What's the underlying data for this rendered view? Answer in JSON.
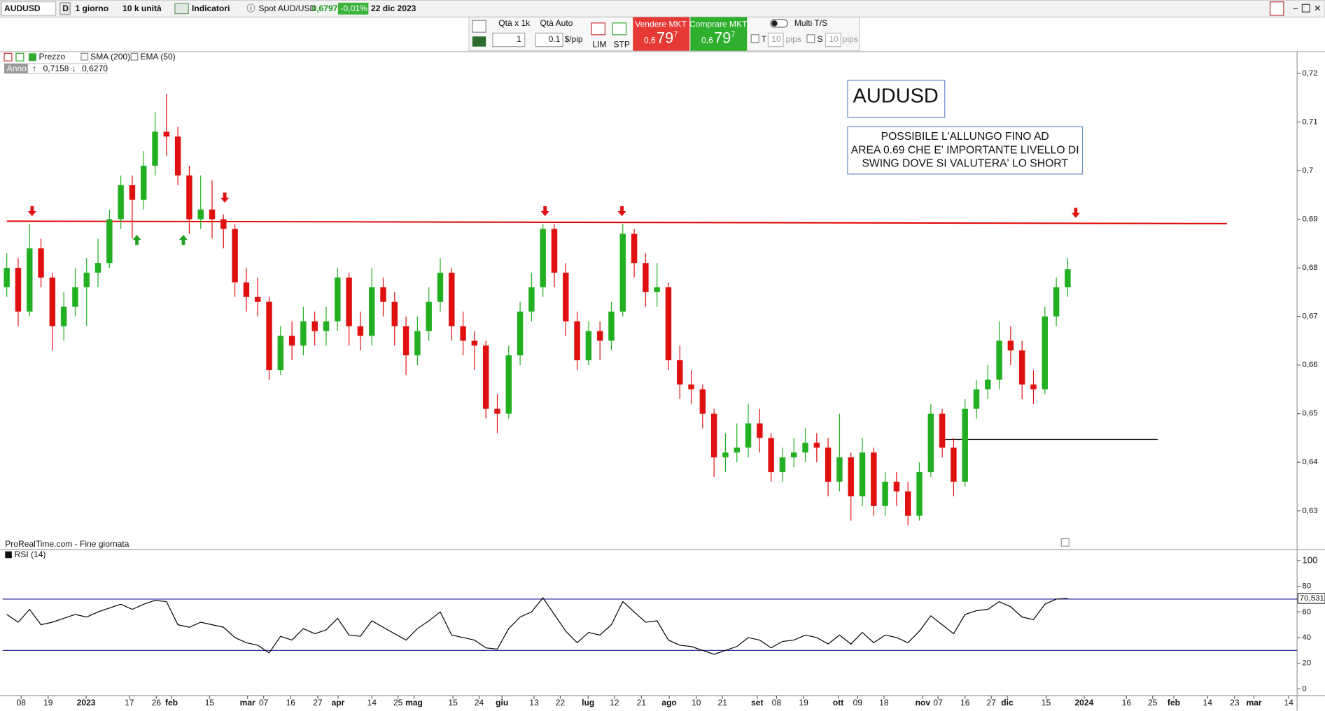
{
  "toolbar": {
    "symbol": "AUDUSD",
    "d": "D",
    "period": "1 giorno",
    "units": "10 k unità",
    "indicators": "Indicatori",
    "spot": "Spot AUD/USD",
    "spot_price": "0,6797",
    "spot_change": "-0,01%",
    "date": "22 dic 2023",
    "qty_label": "Qtà  x 1k",
    "qty_auto": "Qtà Auto",
    "qty": "1",
    "pip_value": "0.1",
    "pip_unit": "$/pip",
    "lim": "LIM",
    "stp": "STP",
    "sell": {
      "label": "Vendere MKT",
      "big": "0,6",
      "main": "79",
      "small": "7"
    },
    "buy": {
      "label": "Comprare MKT",
      "big": "0,6",
      "main": "79",
      "small": "7"
    },
    "multi": "Multi T/S",
    "t": "T",
    "t_pips": "10",
    "t_unit": "pips",
    "s": "S",
    "s_pips": "10",
    "s_unit": "pips"
  },
  "legend": {
    "price": "Prezzo",
    "sma": "SMA (200)",
    "ema": "EMA (50)",
    "period": "Anno",
    "high": "0,7158",
    "low": "0,6270"
  },
  "source": "ProRealTime.com - Fine giornata",
  "annotations": {
    "title": "AUDUSD",
    "note": [
      "POSSIBILE L'ALLUNGO FINO AD",
      "AREA 0.69 CHE E' IMPORTANTE LIVELLO DI",
      "SWING DOVE SI VALUTERA' LO SHORT"
    ]
  },
  "chart_data": [
    {
      "type": "candlestick",
      "up_color": "#22b022",
      "down_color": "#e01010",
      "xlim": [
        -0.37,
        113.11
      ],
      "ylim": [
        0.6222,
        0.7243
      ],
      "yticks": [
        {
          "value": 0.63,
          "label": "0,63"
        },
        {
          "value": 0.64,
          "label": "0,64"
        },
        {
          "value": 0.65,
          "label": "0,65"
        },
        {
          "value": 0.66,
          "label": "0,66"
        },
        {
          "value": 0.67,
          "label": "0,67"
        },
        {
          "value": 0.68,
          "label": "0,68"
        },
        {
          "value": 0.69,
          "label": "0,69"
        },
        {
          "value": 0.7,
          "label": "0,7"
        },
        {
          "value": 0.71,
          "label": "0,71"
        },
        {
          "value": 0.72,
          "label": "0,72"
        }
      ],
      "lines": [
        {
          "color": "#e00000",
          "values": [
            0.6896,
            0.6891
          ]
        },
        {
          "color": "#000000",
          "values": [
            0.6447,
            0.6447
          ]
        }
      ],
      "ohlc": [
        [
          0.676,
          0.683,
          0.674,
          0.68
        ],
        [
          0.68,
          0.682,
          0.668,
          0.671
        ],
        [
          0.671,
          0.689,
          0.67,
          0.684
        ],
        [
          0.684,
          0.686,
          0.676,
          0.678
        ],
        [
          0.678,
          0.679,
          0.663,
          0.668
        ],
        [
          0.668,
          0.675,
          0.665,
          0.672
        ],
        [
          0.672,
          0.68,
          0.67,
          0.676
        ],
        [
          0.676,
          0.682,
          0.668,
          0.679
        ],
        [
          0.679,
          0.686,
          0.676,
          0.681
        ],
        [
          0.681,
          0.692,
          0.68,
          0.69
        ],
        [
          0.69,
          0.699,
          0.688,
          0.697
        ],
        [
          0.697,
          0.699,
          0.686,
          0.694
        ],
        [
          0.694,
          0.704,
          0.692,
          0.701
        ],
        [
          0.701,
          0.712,
          0.699,
          0.708
        ],
        [
          0.708,
          0.7158,
          0.703,
          0.707
        ],
        [
          0.707,
          0.709,
          0.697,
          0.699
        ],
        [
          0.699,
          0.701,
          0.687,
          0.69
        ],
        [
          0.69,
          0.699,
          0.688,
          0.692
        ],
        [
          0.692,
          0.698,
          0.686,
          0.69
        ],
        [
          0.69,
          0.691,
          0.684,
          0.688
        ],
        [
          0.688,
          0.689,
          0.674,
          0.677
        ],
        [
          0.677,
          0.68,
          0.671,
          0.674
        ],
        [
          0.674,
          0.678,
          0.67,
          0.673
        ],
        [
          0.673,
          0.674,
          0.657,
          0.659
        ],
        [
          0.659,
          0.668,
          0.658,
          0.666
        ],
        [
          0.666,
          0.669,
          0.661,
          0.664
        ],
        [
          0.664,
          0.672,
          0.662,
          0.669
        ],
        [
          0.669,
          0.671,
          0.664,
          0.667
        ],
        [
          0.667,
          0.672,
          0.664,
          0.669
        ],
        [
          0.669,
          0.68,
          0.667,
          0.678
        ],
        [
          0.678,
          0.679,
          0.664,
          0.668
        ],
        [
          0.668,
          0.671,
          0.663,
          0.666
        ],
        [
          0.666,
          0.68,
          0.664,
          0.676
        ],
        [
          0.676,
          0.678,
          0.67,
          0.673
        ],
        [
          0.673,
          0.675,
          0.664,
          0.668
        ],
        [
          0.668,
          0.67,
          0.658,
          0.662
        ],
        [
          0.662,
          0.67,
          0.66,
          0.667
        ],
        [
          0.667,
          0.676,
          0.665,
          0.673
        ],
        [
          0.673,
          0.682,
          0.671,
          0.679
        ],
        [
          0.679,
          0.68,
          0.665,
          0.668
        ],
        [
          0.668,
          0.671,
          0.662,
          0.665
        ],
        [
          0.665,
          0.667,
          0.659,
          0.664
        ],
        [
          0.664,
          0.665,
          0.649,
          0.651
        ],
        [
          0.651,
          0.654,
          0.646,
          0.65
        ],
        [
          0.65,
          0.664,
          0.649,
          0.662
        ],
        [
          0.662,
          0.673,
          0.66,
          0.671
        ],
        [
          0.671,
          0.679,
          0.669,
          0.676
        ],
        [
          0.676,
          0.689,
          0.674,
          0.688
        ],
        [
          0.688,
          0.689,
          0.676,
          0.679
        ],
        [
          0.679,
          0.681,
          0.666,
          0.669
        ],
        [
          0.669,
          0.671,
          0.659,
          0.661
        ],
        [
          0.661,
          0.669,
          0.66,
          0.667
        ],
        [
          0.667,
          0.669,
          0.661,
          0.665
        ],
        [
          0.665,
          0.673,
          0.663,
          0.671
        ],
        [
          0.671,
          0.689,
          0.67,
          0.687
        ],
        [
          0.687,
          0.688,
          0.678,
          0.681
        ],
        [
          0.681,
          0.683,
          0.672,
          0.675
        ],
        [
          0.675,
          0.681,
          0.672,
          0.676
        ],
        [
          0.676,
          0.677,
          0.659,
          0.661
        ],
        [
          0.661,
          0.664,
          0.653,
          0.656
        ],
        [
          0.656,
          0.659,
          0.652,
          0.655
        ],
        [
          0.655,
          0.656,
          0.647,
          0.65
        ],
        [
          0.65,
          0.651,
          0.637,
          0.641
        ],
        [
          0.641,
          0.646,
          0.638,
          0.642
        ],
        [
          0.642,
          0.648,
          0.64,
          0.643
        ],
        [
          0.643,
          0.652,
          0.641,
          0.648
        ],
        [
          0.648,
          0.651,
          0.642,
          0.645
        ],
        [
          0.645,
          0.646,
          0.636,
          0.638
        ],
        [
          0.638,
          0.643,
          0.636,
          0.641
        ],
        [
          0.641,
          0.645,
          0.639,
          0.642
        ],
        [
          0.642,
          0.647,
          0.64,
          0.644
        ],
        [
          0.644,
          0.646,
          0.64,
          0.643
        ],
        [
          0.643,
          0.645,
          0.633,
          0.636
        ],
        [
          0.636,
          0.65,
          0.634,
          0.641
        ],
        [
          0.641,
          0.642,
          0.628,
          0.633
        ],
        [
          0.633,
          0.645,
          0.631,
          0.642
        ],
        [
          0.642,
          0.643,
          0.629,
          0.631
        ],
        [
          0.631,
          0.638,
          0.629,
          0.636
        ],
        [
          0.636,
          0.638,
          0.631,
          0.634
        ],
        [
          0.634,
          0.636,
          0.627,
          0.629
        ],
        [
          0.629,
          0.64,
          0.628,
          0.638
        ],
        [
          0.638,
          0.652,
          0.637,
          0.65
        ],
        [
          0.65,
          0.651,
          0.641,
          0.643
        ],
        [
          0.643,
          0.645,
          0.633,
          0.636
        ],
        [
          0.636,
          0.653,
          0.635,
          0.651
        ],
        [
          0.651,
          0.657,
          0.649,
          0.655
        ],
        [
          0.655,
          0.66,
          0.653,
          0.657
        ],
        [
          0.657,
          0.669,
          0.655,
          0.665
        ],
        [
          0.665,
          0.668,
          0.66,
          0.663
        ],
        [
          0.663,
          0.665,
          0.653,
          0.656
        ],
        [
          0.656,
          0.659,
          0.652,
          0.655
        ],
        [
          0.655,
          0.672,
          0.654,
          0.67
        ],
        [
          0.67,
          0.678,
          0.668,
          0.676
        ],
        [
          0.676,
          0.682,
          0.674,
          0.6797
        ]
      ]
    },
    {
      "type": "line",
      "title": "RSI (14)",
      "color": "#000000",
      "level_color": "#1a1a8c",
      "levels": [
        70,
        30
      ],
      "value_label": "70,531",
      "xlim": [
        -0.37,
        113.11
      ],
      "ylim": [
        -4.6,
        107.9
      ],
      "yticks": [
        0,
        20,
        40,
        60,
        80,
        100
      ],
      "xticks": [
        {
          "value": 1.26,
          "label": "08"
        },
        {
          "value": 3.63,
          "label": "19"
        },
        {
          "value": 6.96,
          "label": "2023"
        },
        {
          "value": 10.74,
          "label": "17"
        },
        {
          "value": 13.11,
          "label": "26"
        },
        {
          "value": 14.44,
          "label": "feb"
        },
        {
          "value": 17.78,
          "label": "15"
        },
        {
          "value": 21.11,
          "label": "mar"
        },
        {
          "value": 22.52,
          "label": "07"
        },
        {
          "value": 24.89,
          "label": "16"
        },
        {
          "value": 27.26,
          "label": "27"
        },
        {
          "value": 29.04,
          "label": "apr"
        },
        {
          "value": 32,
          "label": "14"
        },
        {
          "value": 34.3,
          "label": "25"
        },
        {
          "value": 35.7,
          "label": "mag"
        },
        {
          "value": 39.11,
          "label": "15"
        },
        {
          "value": 41.41,
          "label": "24"
        },
        {
          "value": 43.41,
          "label": "giu"
        },
        {
          "value": 46.22,
          "label": "13"
        },
        {
          "value": 48.52,
          "label": "22"
        },
        {
          "value": 50.96,
          "label": "lug"
        },
        {
          "value": 53.26,
          "label": "12"
        },
        {
          "value": 55.63,
          "label": "21"
        },
        {
          "value": 58.07,
          "label": "ago"
        },
        {
          "value": 60.44,
          "label": "10"
        },
        {
          "value": 62.74,
          "label": "21"
        },
        {
          "value": 65.78,
          "label": "set"
        },
        {
          "value": 67.48,
          "label": "08"
        },
        {
          "value": 69.85,
          "label": "19"
        },
        {
          "value": 72.89,
          "label": "ott"
        },
        {
          "value": 74.59,
          "label": "09"
        },
        {
          "value": 76.89,
          "label": "18"
        },
        {
          "value": 80.3,
          "label": "nov"
        },
        {
          "value": 81.63,
          "label": "07"
        },
        {
          "value": 84,
          "label": "16"
        },
        {
          "value": 86.3,
          "label": "27"
        },
        {
          "value": 87.7,
          "label": "dic"
        },
        {
          "value": 91.11,
          "label": "15"
        },
        {
          "value": 94.44,
          "label": "2024"
        },
        {
          "value": 98.15,
          "label": "16"
        },
        {
          "value": 100.44,
          "label": "25"
        },
        {
          "value": 102.3,
          "label": "feb"
        },
        {
          "value": 105.26,
          "label": "14"
        },
        {
          "value": 107.63,
          "label": "23"
        },
        {
          "value": 109.33,
          "label": "mar"
        },
        {
          "value": 112.37,
          "label": "14"
        }
      ],
      "values": [
        58,
        52,
        62,
        50,
        52,
        55,
        58,
        56,
        60,
        63,
        66,
        62,
        66,
        69,
        68,
        50,
        48,
        52,
        50,
        48,
        40,
        36,
        34,
        28,
        41,
        38,
        47,
        43,
        46,
        55,
        42,
        41,
        53,
        48,
        43,
        38,
        47,
        53,
        60,
        42,
        40,
        38,
        32,
        31,
        47,
        56,
        60,
        71,
        58,
        45,
        36,
        44,
        42,
        50,
        68,
        60,
        52,
        53,
        38,
        34,
        33,
        30,
        27,
        30,
        33,
        40,
        38,
        32,
        37,
        38,
        42,
        40,
        35,
        42,
        35,
        44,
        36,
        42,
        40,
        36,
        45,
        57,
        50,
        43,
        58,
        61,
        62,
        68,
        64,
        56,
        54,
        66,
        70,
        70.531
      ]
    }
  ]
}
